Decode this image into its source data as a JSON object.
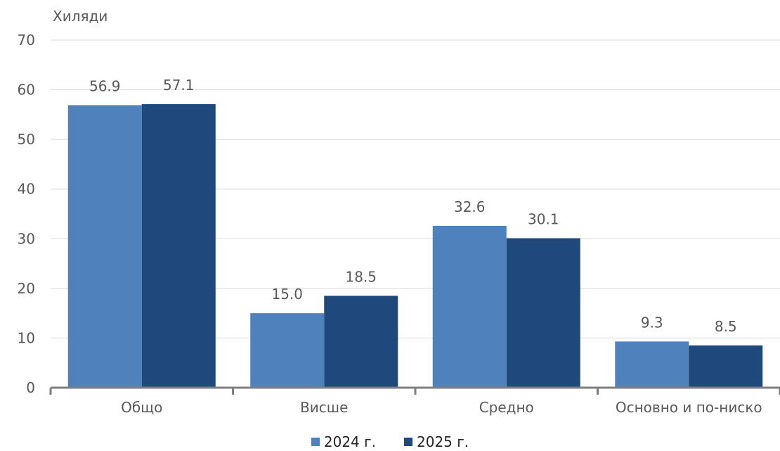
{
  "chart_data": {
    "type": "bar",
    "ylabel": "Хиляди",
    "yticks": [
      "0",
      "10",
      "20",
      "30",
      "40",
      "50",
      "60",
      "70"
    ],
    "ylim": [
      0,
      70
    ],
    "grid": true,
    "categories": [
      "Общо",
      "Висше",
      "Средно",
      "Основно и по-ниско"
    ],
    "series": [
      {
        "name": "2024 г.",
        "color": "#4f81bd",
        "values": [
          56.9,
          15.0,
          32.6,
          9.3
        ],
        "labels": [
          "56.9",
          "15.0",
          "32.6",
          "9.3"
        ]
      },
      {
        "name": "2025 г.",
        "color": "#1f497d",
        "values": [
          57.1,
          18.5,
          30.1,
          8.5
        ],
        "labels": [
          "57.1",
          "18.5",
          "30.1",
          "8.5"
        ]
      }
    ],
    "legend_position": "bottom"
  }
}
